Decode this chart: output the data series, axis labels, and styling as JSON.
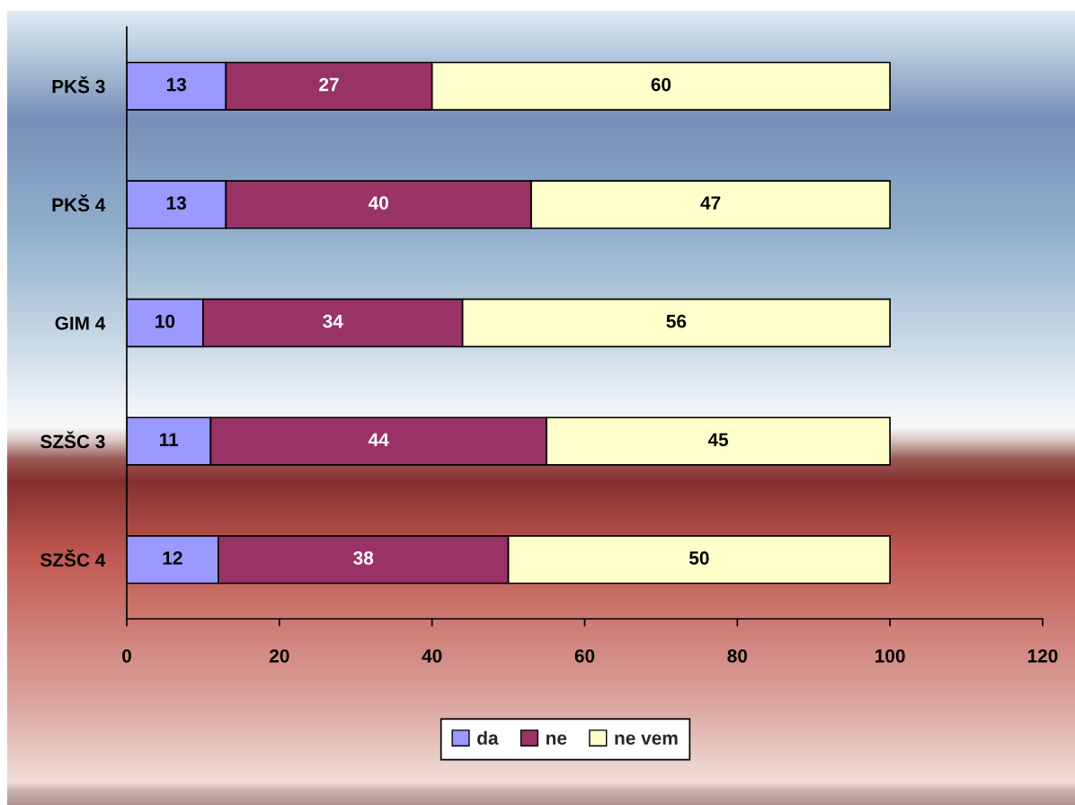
{
  "chart_data": {
    "type": "bar",
    "orientation": "horizontal",
    "stacked": true,
    "categories": [
      "PKŠ 3",
      "PKŠ 4",
      "GIM 4",
      "SZŠC 3",
      "SZŠC 4"
    ],
    "series": [
      {
        "name": "da",
        "color": "#9999ff",
        "values": [
          13,
          13,
          10,
          11,
          12
        ]
      },
      {
        "name": "ne",
        "color": "#993366",
        "values": [
          27,
          40,
          34,
          44,
          38
        ]
      },
      {
        "name": "ne vem",
        "color": "#ffffcc",
        "values": [
          60,
          47,
          56,
          45,
          50
        ]
      }
    ],
    "xlim": [
      0,
      120
    ],
    "xticks": [
      0,
      20,
      40,
      60,
      80,
      100,
      120
    ],
    "data_labels": true,
    "legend": "bottom",
    "grid": false
  }
}
